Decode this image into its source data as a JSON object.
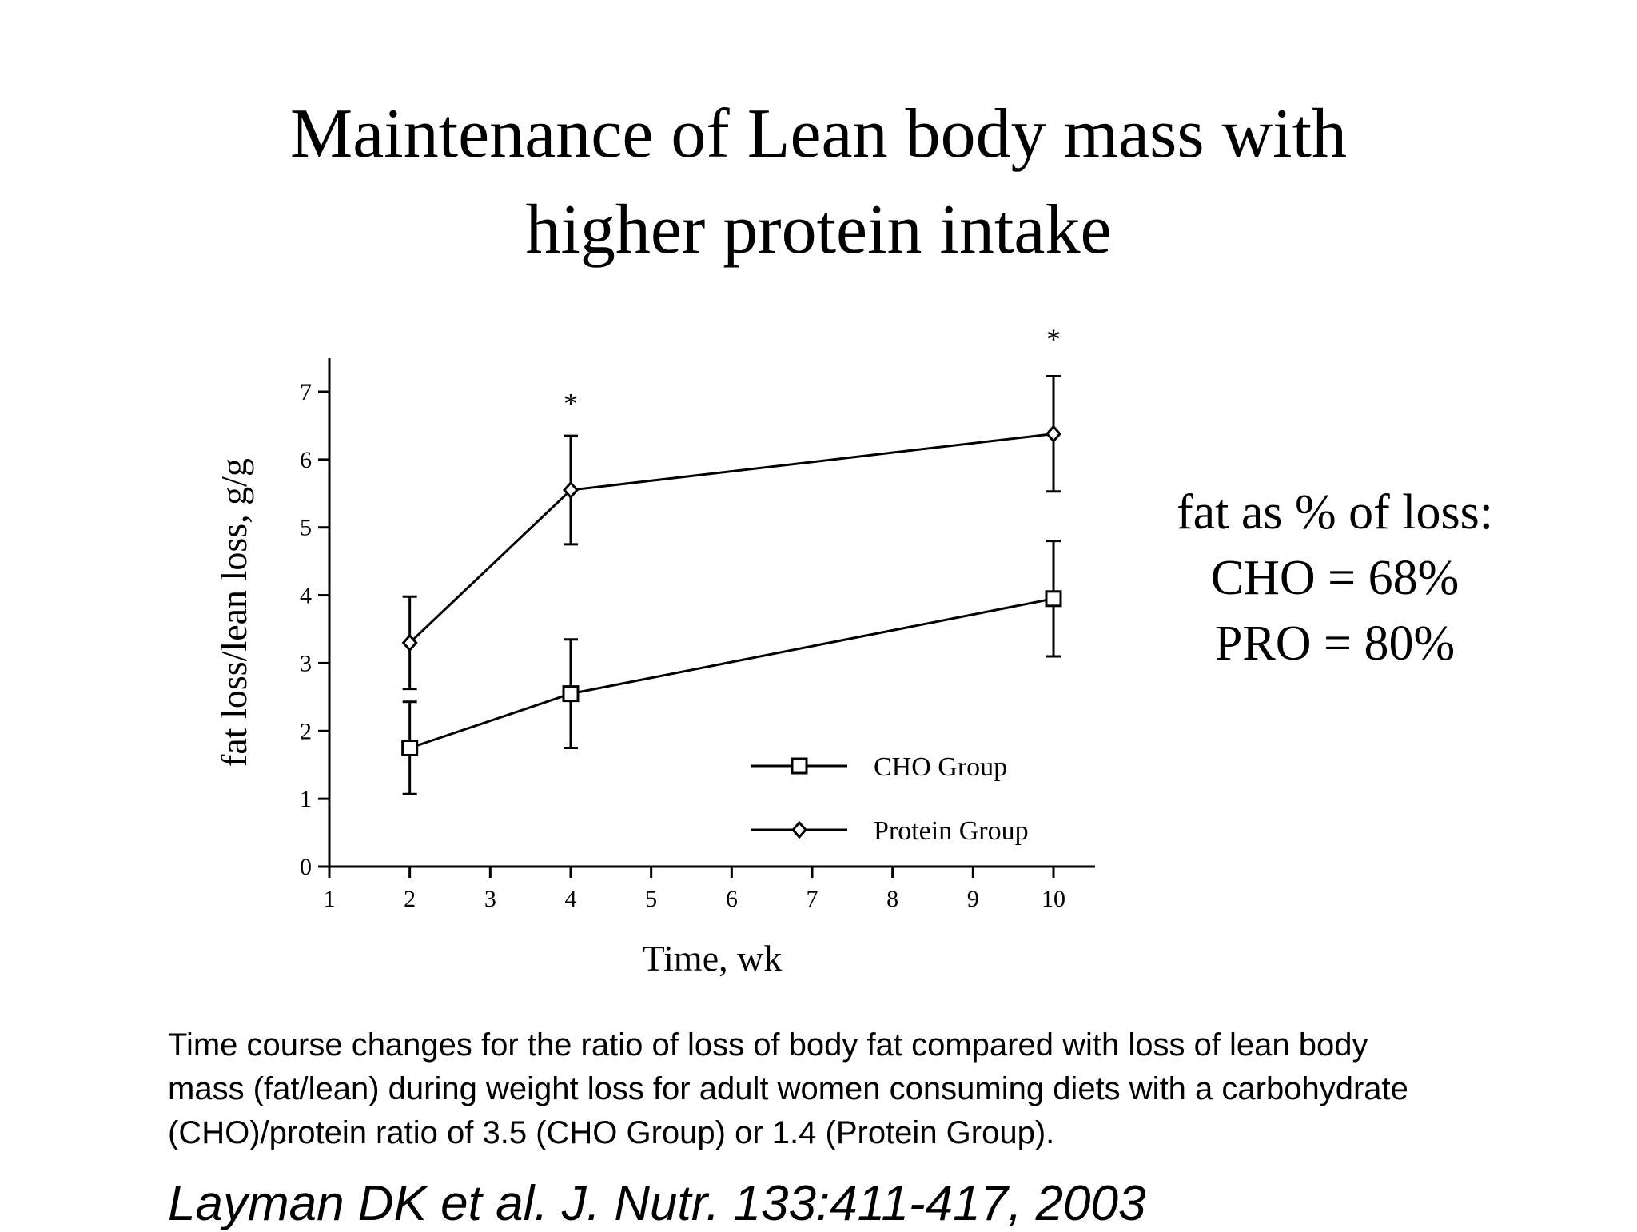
{
  "slide": {
    "title_lines": [
      "Maintenance of Lean body mass with",
      "higher protein intake"
    ],
    "side_note_lines": [
      "fat as % of loss:",
      "CHO = 68%",
      "PRO = 80%"
    ],
    "caption_lines": [
      "Time course changes for the ratio of loss of body fat compared with loss of lean body",
      "mass (fat/lean) during weight loss for adult women consuming diets with a carbohydrate",
      "(CHO)/protein ratio of 3.5 (CHO Group) or 1.4 (Protein Group)."
    ],
    "citation": "Layman DK et al. J. Nutr. 133:411-417, 2003"
  },
  "chart_data": {
    "type": "line",
    "xlabel": "Time, wk",
    "ylabel": "fat loss/lean loss, g/g",
    "xlim": [
      1,
      10.5
    ],
    "ylim": [
      0,
      7.5
    ],
    "xticks": [
      1,
      2,
      3,
      4,
      5,
      6,
      7,
      8,
      9,
      10
    ],
    "yticks": [
      0,
      1,
      2,
      3,
      4,
      5,
      6,
      7
    ],
    "grid": false,
    "legend_position": "bottom-right",
    "series": [
      {
        "name": "CHO Group",
        "marker": "square",
        "x": [
          2,
          4,
          10
        ],
        "y": [
          1.75,
          2.55,
          3.95
        ],
        "error": [
          0.68,
          0.8,
          0.85
        ]
      },
      {
        "name": "Protein Group",
        "marker": "diamond",
        "x": [
          2,
          4,
          10
        ],
        "y": [
          3.3,
          5.55,
          6.38
        ],
        "error": [
          0.68,
          0.8,
          0.85
        ]
      }
    ],
    "annotations": [
      {
        "text": "*",
        "x": 4,
        "y": 6.9
      },
      {
        "text": "*",
        "x": 10,
        "y": 7.85
      }
    ]
  }
}
